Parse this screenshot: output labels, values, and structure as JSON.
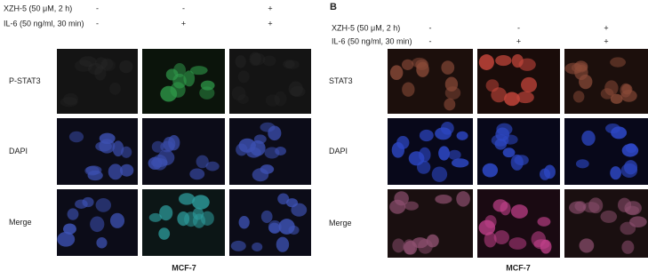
{
  "panels": [
    {
      "treatments": [
        {
          "label": "XZH-5 (50 μM, 2 h)",
          "values": [
            "-",
            "-",
            "+"
          ]
        },
        {
          "label": "IL-6 (50 ng/ml, 30 min)",
          "values": [
            "-",
            "+",
            "+"
          ]
        }
      ],
      "rows": [
        "P-STAT3",
        "DAPI",
        "Merge"
      ],
      "cell_line": "MCF-7"
    },
    {
      "label": "B",
      "treatments": [
        {
          "label": "XZH-5 (50 μM, 2 h)",
          "values": [
            "-",
            "-",
            "+"
          ]
        },
        {
          "label": "IL-6 (50 ng/ml, 30 min)",
          "values": [
            "-",
            "+",
            "+"
          ]
        }
      ],
      "rows": [
        "STAT3",
        "DAPI",
        "Merge"
      ],
      "cell_line": "MCF-7"
    }
  ]
}
